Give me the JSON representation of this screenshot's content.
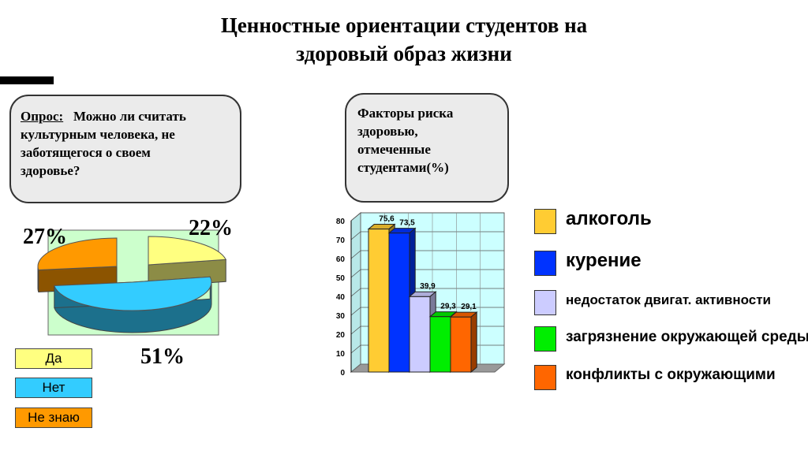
{
  "title_line1": "Ценностные ориентации студентов на",
  "title_line2": "здоровый образ жизни",
  "survey": {
    "label": "Опрос:",
    "question_line1": "Можно ли считать",
    "question_line2": "культурным человека, не",
    "question_line3": "заботящегося о своем",
    "question_line4": "здоровье?"
  },
  "risk_caption": {
    "line1": "Факторы риска",
    "line2": "здоровью,",
    "line3": "отмеченные",
    "line4": "студентами(%)"
  },
  "chart_data": [
    {
      "type": "pie",
      "categories": [
        "Да",
        "Нет",
        "Не знаю"
      ],
      "values": [
        22,
        51,
        27
      ],
      "labels": [
        "22%",
        "51%",
        "27%"
      ],
      "colors": [
        "#ffff80",
        "#33ccff",
        "#ff9900"
      ],
      "legend_placement": "bottom-left"
    },
    {
      "type": "bar",
      "categories": [
        "алкоголь",
        "курение",
        "недостаток двигат. активности",
        "загрязнение окружающей среды",
        "конфликты с окружающими"
      ],
      "values": [
        75.6,
        73.5,
        39.9,
        29.3,
        29.1
      ],
      "value_labels": [
        "75,6",
        "73,5",
        "39,9",
        "29,3",
        "29,1"
      ],
      "colors": [
        "#ffcc33",
        "#0033ff",
        "#ccccff",
        "#00ee00",
        "#ff6600"
      ],
      "ylim": [
        0,
        80
      ],
      "yticks": [
        "0",
        "10",
        "20",
        "30",
        "40",
        "50",
        "60",
        "70",
        "80"
      ],
      "grid": true,
      "legend_placement": "right"
    }
  ]
}
